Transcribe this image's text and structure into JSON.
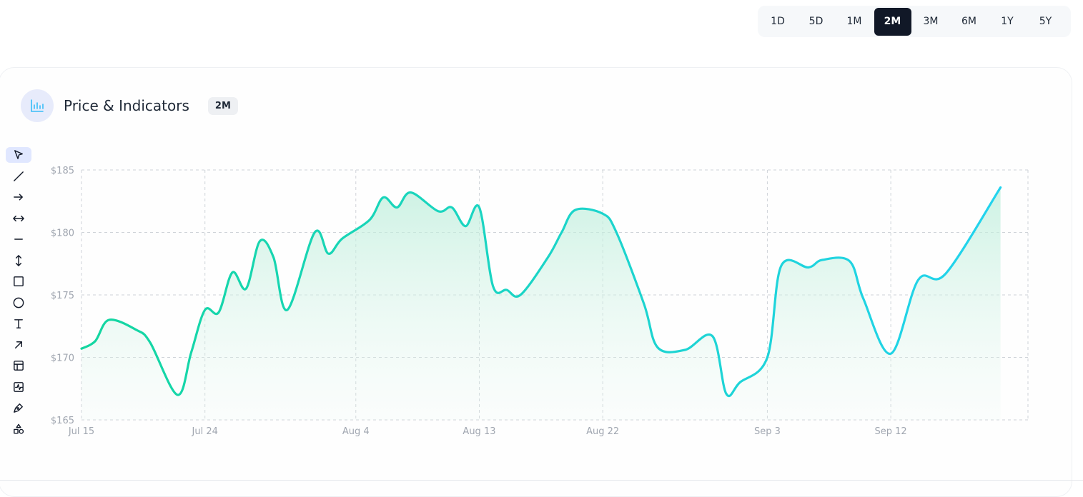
{
  "range_selector": {
    "options": [
      "1D",
      "5D",
      "1M",
      "2M",
      "3M",
      "6M",
      "1Y",
      "5Y"
    ],
    "selected": "2M"
  },
  "card": {
    "title": "Price & Indicators",
    "badge": "2M",
    "icon": "bar-chart-icon"
  },
  "tools": [
    {
      "name": "cursor-icon",
      "active": true
    },
    {
      "name": "trend-line-icon",
      "active": false
    },
    {
      "name": "arrow-icon",
      "active": false
    },
    {
      "name": "double-arrow-icon",
      "active": false
    },
    {
      "name": "horizontal-line-icon",
      "active": false
    },
    {
      "name": "vertical-arrow-icon",
      "active": false
    },
    {
      "name": "rectangle-icon",
      "active": false
    },
    {
      "name": "circle-icon",
      "active": false
    },
    {
      "name": "text-icon",
      "active": false
    },
    {
      "name": "diagonal-arrow-icon",
      "active": false
    },
    {
      "name": "layout-icon",
      "active": false
    },
    {
      "name": "indicator-icon",
      "active": false
    },
    {
      "name": "pen-icon",
      "active": false
    },
    {
      "name": "shapes-icon",
      "active": false
    }
  ],
  "colors": {
    "line_start": "#14d6a0",
    "line_end": "#22d3ee",
    "area_fill": "#d1f5e6",
    "grid": "#cfd3d8",
    "active_range": "#111827"
  },
  "chart_data": {
    "type": "area",
    "ylim": [
      165,
      185
    ],
    "yticks": [
      165,
      170,
      175,
      180,
      185
    ],
    "ytick_labels": [
      "$165",
      "$170",
      "$175",
      "$180",
      "$185"
    ],
    "xlim": [
      "2024-07-15",
      "2024-09-22"
    ],
    "xticks": [
      "2024-07-15",
      "2024-07-24",
      "2024-08-04",
      "2024-08-13",
      "2024-08-22",
      "2024-09-03",
      "2024-09-12"
    ],
    "xtick_labels": [
      "Jul 15",
      "Jul 24",
      "Aug 4",
      "Aug 13",
      "Aug 22",
      "Sep 3",
      "Sep 12"
    ],
    "grid": true,
    "series": [
      {
        "values": [
          [
            "2024-07-15",
            170.7
          ],
          [
            "2024-07-16",
            171.3
          ],
          [
            "2024-07-17",
            173.0
          ],
          [
            "2024-07-19",
            172.2
          ],
          [
            "2024-07-20",
            171.2
          ],
          [
            "2024-07-22",
            167.0
          ],
          [
            "2024-07-23",
            170.4
          ],
          [
            "2024-07-24",
            173.8
          ],
          [
            "2024-07-25",
            173.6
          ],
          [
            "2024-07-26",
            176.8
          ],
          [
            "2024-07-27",
            175.5
          ],
          [
            "2024-07-28",
            179.3
          ],
          [
            "2024-07-29",
            178.0
          ],
          [
            "2024-07-30",
            173.8
          ],
          [
            "2024-08-01",
            180.0
          ],
          [
            "2024-08-02",
            178.3
          ],
          [
            "2024-08-03",
            179.5
          ],
          [
            "2024-08-05",
            181.0
          ],
          [
            "2024-08-06",
            182.8
          ],
          [
            "2024-08-07",
            182.0
          ],
          [
            "2024-08-08",
            183.2
          ],
          [
            "2024-08-10",
            181.7
          ],
          [
            "2024-08-11",
            182.0
          ],
          [
            "2024-08-12",
            180.5
          ],
          [
            "2024-08-13",
            182.0
          ],
          [
            "2024-08-14",
            175.7
          ],
          [
            "2024-08-15",
            175.4
          ],
          [
            "2024-08-16",
            175.0
          ],
          [
            "2024-08-18",
            178.0
          ],
          [
            "2024-08-19",
            180.0
          ],
          [
            "2024-08-20",
            181.8
          ],
          [
            "2024-08-22",
            181.5
          ],
          [
            "2024-08-23",
            180.0
          ],
          [
            "2024-08-25",
            174.3
          ],
          [
            "2024-08-26",
            170.8
          ],
          [
            "2024-08-28",
            170.6
          ],
          [
            "2024-08-30",
            171.7
          ],
          [
            "2024-08-31",
            167.1
          ],
          [
            "2024-09-01",
            168.0
          ],
          [
            "2024-09-03",
            170.0
          ],
          [
            "2024-09-04",
            177.3
          ],
          [
            "2024-09-06",
            177.2
          ],
          [
            "2024-09-07",
            177.8
          ],
          [
            "2024-09-09",
            177.7
          ],
          [
            "2024-09-10",
            174.7
          ],
          [
            "2024-09-12",
            170.3
          ],
          [
            "2024-09-14",
            176.2
          ],
          [
            "2024-09-16",
            176.7
          ],
          [
            "2024-09-20",
            183.6
          ]
        ]
      }
    ]
  }
}
